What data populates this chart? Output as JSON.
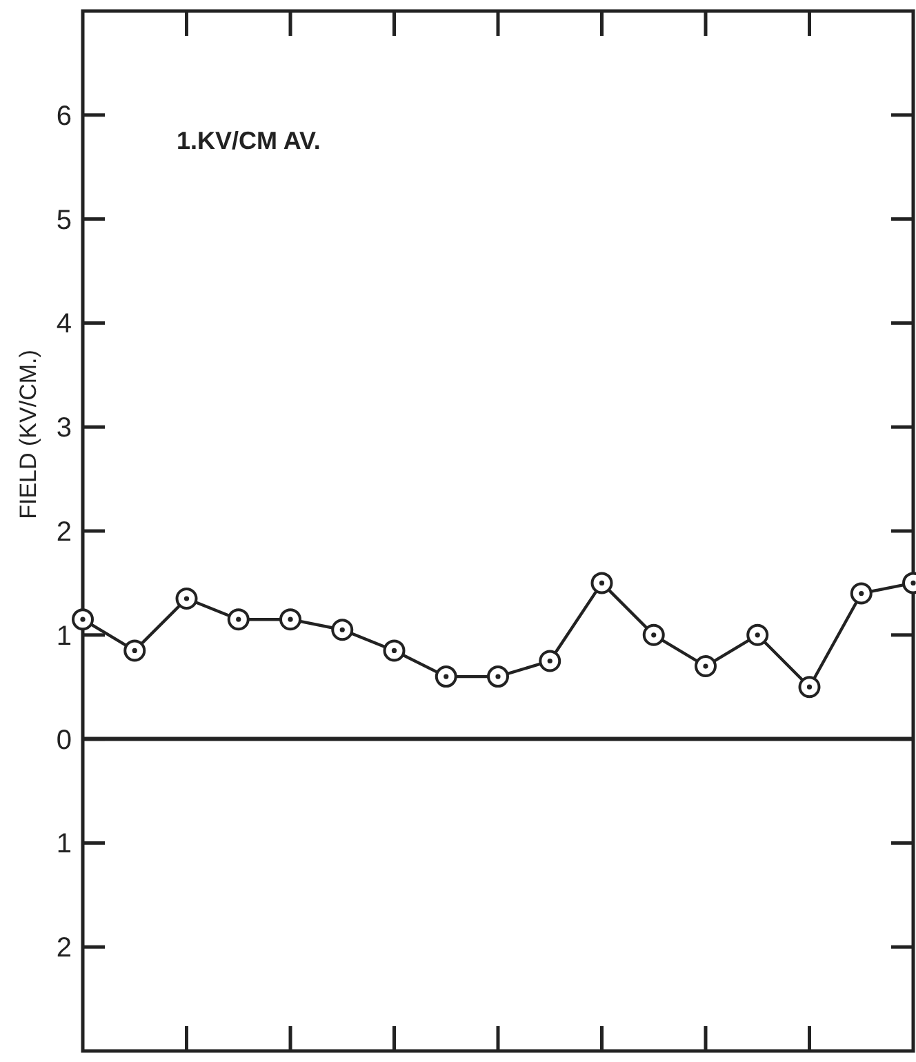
{
  "chart_data": {
    "type": "line",
    "ylabel": "FIELD (KV/CM.)",
    "annotations": [
      "1.KV/CM AV."
    ],
    "categories": [
      null,
      null,
      null,
      null,
      null,
      null,
      null,
      null,
      null,
      null,
      null,
      null,
      null,
      null,
      null,
      null,
      null
    ],
    "series": [
      {
        "color": "#222222",
        "values": [
          1.15,
          0.85,
          1.35,
          1.15,
          1.15,
          1.05,
          0.85,
          0.6,
          0.6,
          0.75,
          1.5,
          1.0,
          0.7,
          1.0,
          0.5,
          1.4,
          1.5
        ]
      }
    ],
    "ylim": [
      -3,
      7
    ],
    "yticks": [
      {
        "value": -2,
        "label": "2"
      },
      {
        "value": -1,
        "label": "1"
      },
      0,
      1,
      2,
      3,
      4,
      5,
      6
    ],
    "ref_lines": [
      {
        "axis": "y",
        "value": 0,
        "label": null
      }
    ],
    "tick_labels": "y",
    "grid": false,
    "marker": "circle",
    "line_style": "solid"
  }
}
